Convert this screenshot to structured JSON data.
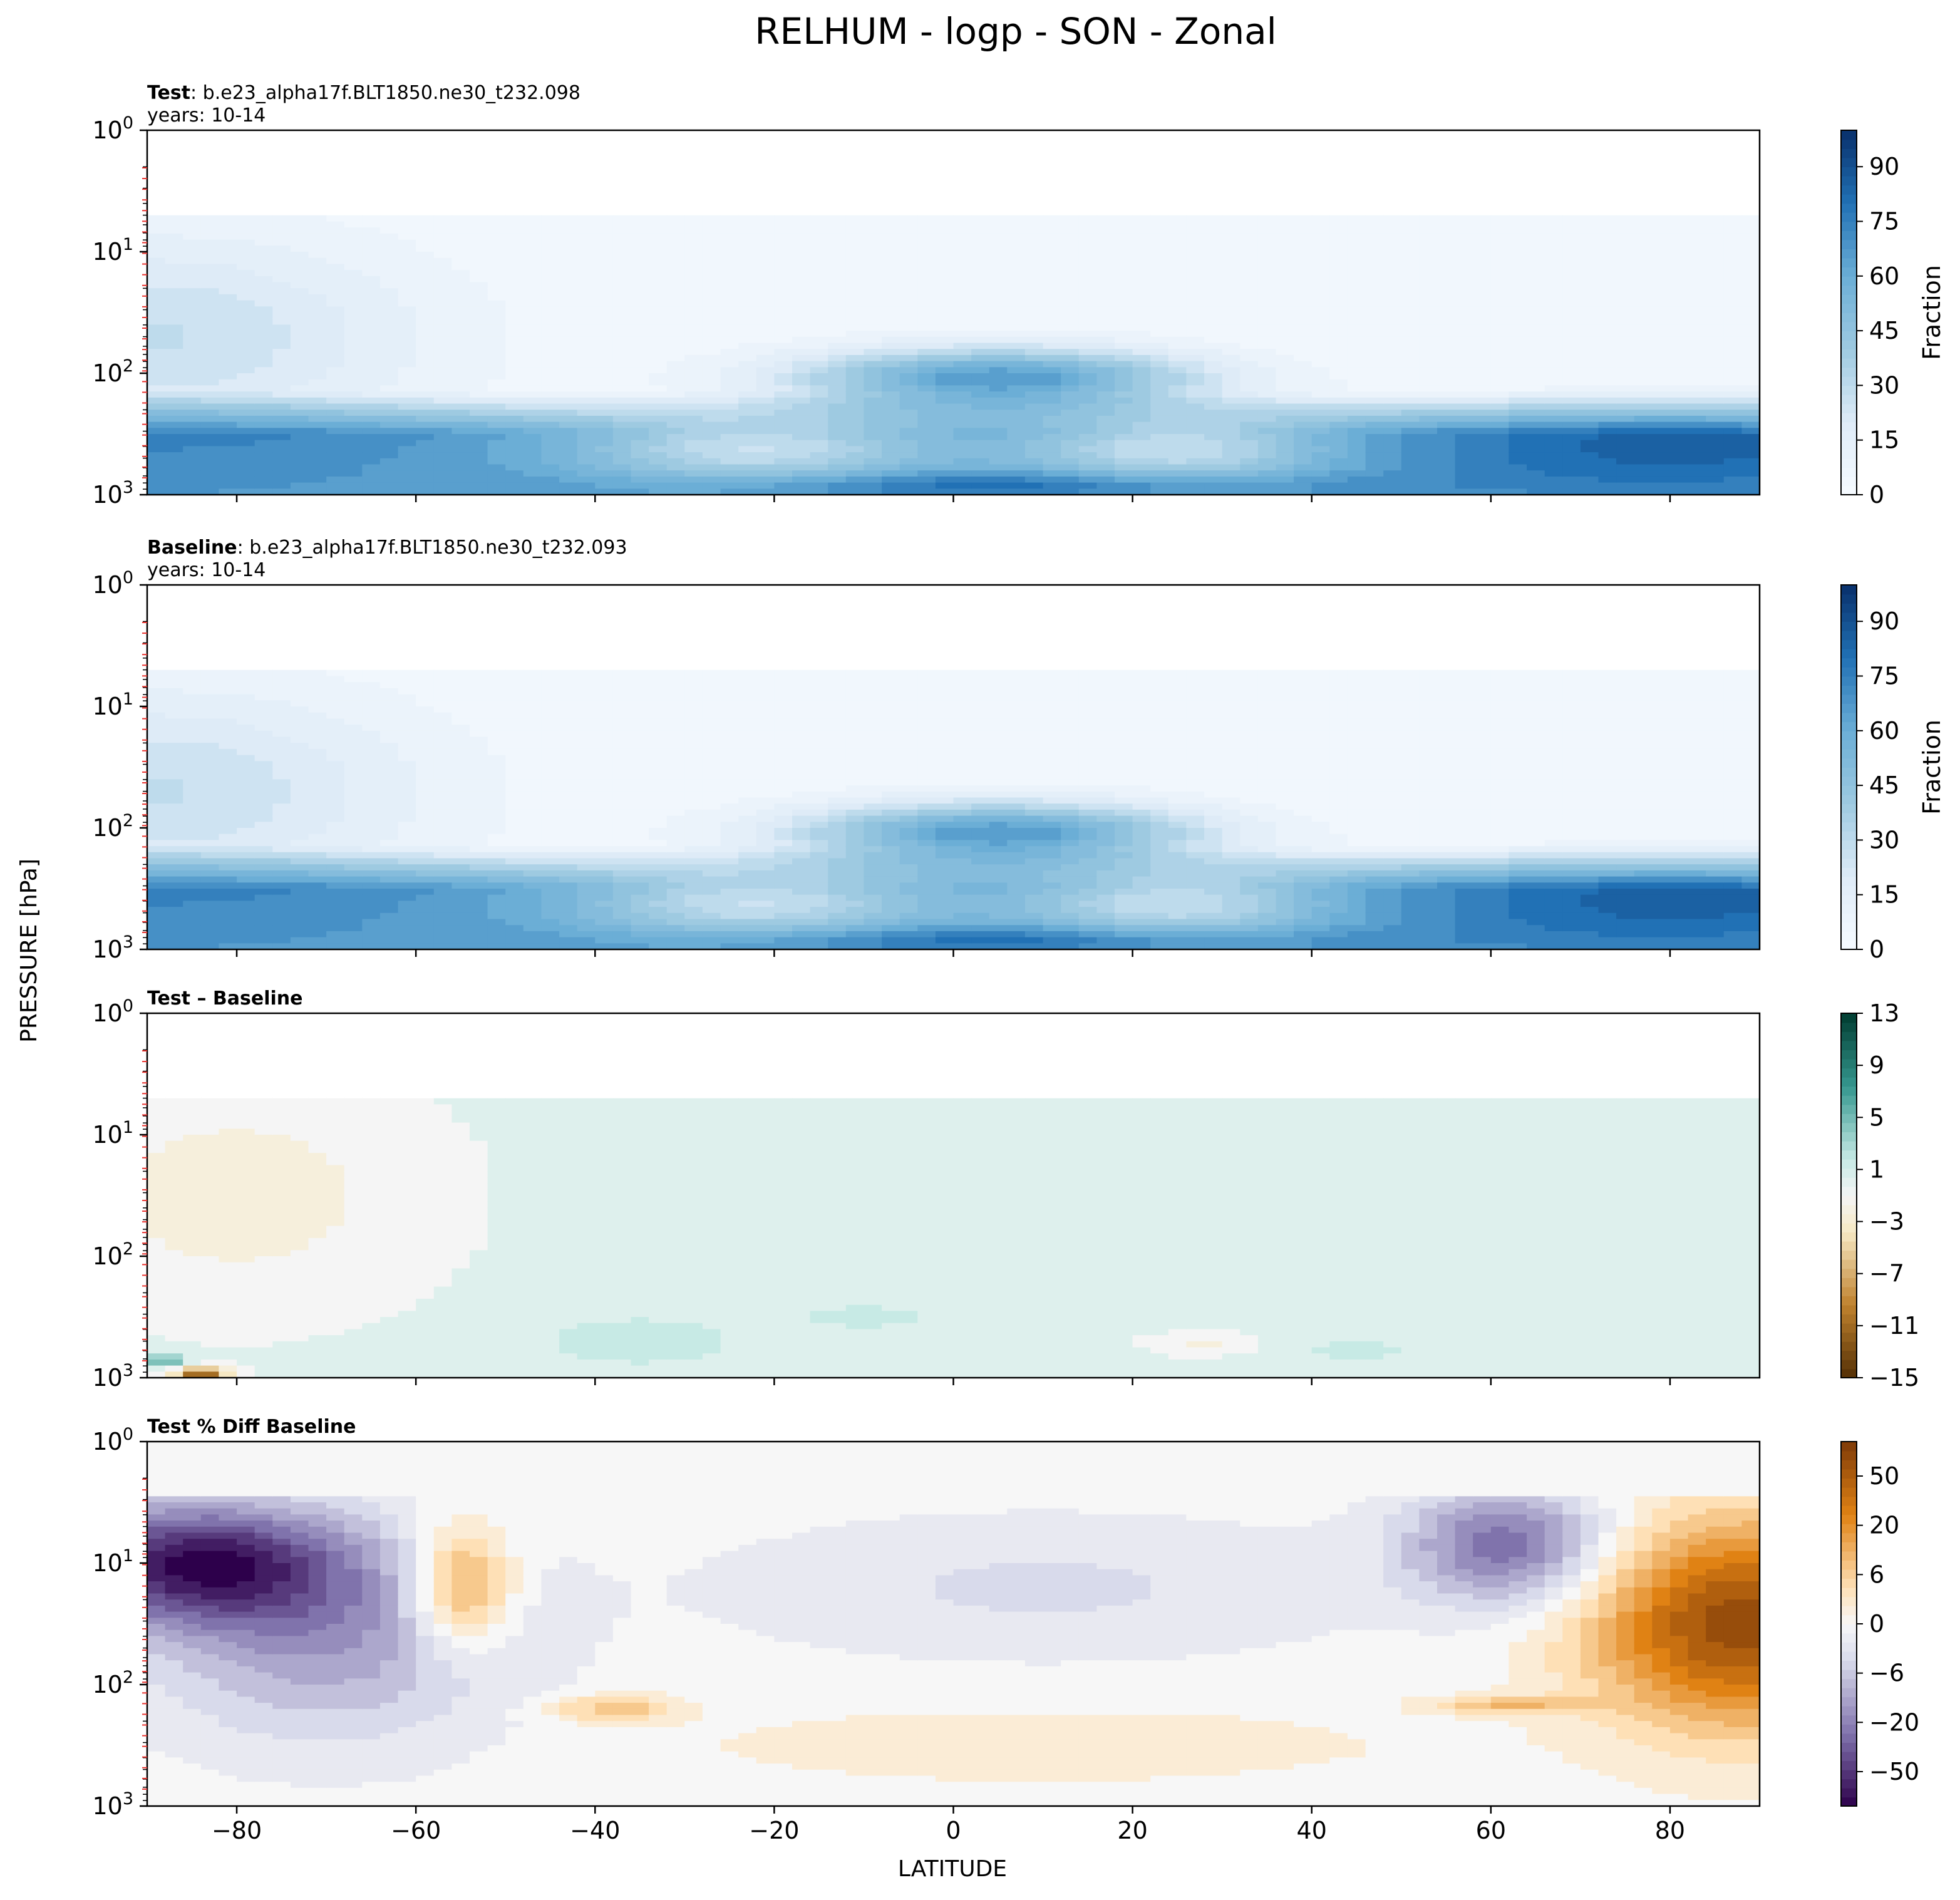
{
  "figure": {
    "title": "RELHUM - logp - SON - Zonal",
    "xlabel": "LATITUDE",
    "ylabel": "PRESSURE [hPa]"
  },
  "chart_data": [
    {
      "type": "heatmap",
      "panel": "test",
      "title_bold": "Test",
      "title_rest": ": b.e23_alpha17f.BLT1850.ne30_t232.098",
      "subtitle": "years: 10-14",
      "xlim": [
        -90,
        90
      ],
      "ylim_hpa": [
        1000,
        1
      ],
      "y_scale": "log",
      "x_ticks": [
        -80,
        -60,
        -40,
        -20,
        0,
        20,
        40,
        60,
        80
      ],
      "y_ticks": [
        {
          "base": "10",
          "exp": "0",
          "value": 1
        },
        {
          "base": "10",
          "exp": "1",
          "value": 10
        },
        {
          "base": "10",
          "exp": "2",
          "value": 100
        },
        {
          "base": "10",
          "exp": "3",
          "value": 1000
        }
      ],
      "colormap": "Blues",
      "colorbar_label": "Fraction",
      "colorbar_ticks": [
        "0",
        "15",
        "30",
        "45",
        "60",
        "75",
        "90"
      ],
      "colorbar_range": [
        0,
        100
      ],
      "data_top_hpa": 5,
      "features": [
        {
          "desc": "dry upper troposphere, moist boundary layer",
          "lat": [
            -90,
            90
          ]
        },
        {
          "desc": "tropical upper-tropospheric maximum near 100 hPa",
          "lat": [
            -20,
            20
          ],
          "value": 75
        },
        {
          "desc": "subtropical dry zones at 400-500 hPa",
          "lat": [
            -40,
            -10
          ],
          "value": 20
        },
        {
          "desc": "subtropical dry zones at 400-500 hPa",
          "lat": [
            15,
            35
          ],
          "value": 20
        },
        {
          "desc": "polar near-saturation at low levels",
          "lat": [
            60,
            90
          ],
          "value": 90
        }
      ]
    },
    {
      "type": "heatmap",
      "panel": "baseline",
      "title_bold": "Baseline",
      "title_rest": ": b.e23_alpha17f.BLT1850.ne30_t232.093",
      "subtitle": "years: 10-14",
      "xlim": [
        -90,
        90
      ],
      "ylim_hpa": [
        1000,
        1
      ],
      "y_scale": "log",
      "colormap": "Blues",
      "colorbar_label": "Fraction",
      "colorbar_ticks": [
        "0",
        "15",
        "30",
        "45",
        "60",
        "75",
        "90"
      ],
      "colorbar_range": [
        0,
        100
      ],
      "data_top_hpa": 5
    },
    {
      "type": "heatmap",
      "panel": "difference",
      "title_bold": "Test – Baseline",
      "colormap": "BrBG",
      "colorbar_ticks": [
        "13",
        "9",
        "5",
        "1",
        "−3",
        "−7",
        "−11",
        "−15"
      ],
      "colorbar_levels": [
        -15,
        -13,
        -11,
        -9,
        -7,
        -5,
        -3,
        -1,
        1,
        3,
        5,
        7,
        9,
        11,
        13
      ],
      "data_top_hpa": 5,
      "features": [
        {
          "desc": "weak drying in SH high-latitude upper troposphere",
          "lat": [
            -90,
            -60
          ],
          "value": -2
        },
        {
          "desc": "small moistening patches in lower troposphere",
          "lat": [
            -45,
            -30
          ],
          "value": 2
        },
        {
          "desc": "strongest drying near surface at 85S",
          "lat": [
            -86,
            -82
          ],
          "value": -13
        }
      ]
    },
    {
      "type": "heatmap",
      "panel": "percent_difference",
      "title_bold": "Test % Diff Baseline",
      "colormap": "PuOr_r",
      "colorbar_ticks": [
        "50",
        "20",
        "6",
        "0",
        "−6",
        "−20",
        "−50"
      ],
      "colorbar_levels": [
        -100,
        -75,
        -50,
        -40,
        -30,
        -20,
        -15,
        -10,
        -8,
        -6,
        -4,
        -2,
        -1,
        0,
        1,
        2,
        4,
        6,
        8,
        10,
        15,
        20,
        30,
        40,
        50,
        75,
        100
      ],
      "features": [
        {
          "desc": "negative percent differences in SH stratosphere",
          "lat": [
            -90,
            -60
          ],
          "value": -20
        },
        {
          "desc": "positive anomaly near 55S upper levels",
          "lat": [
            -60,
            -45
          ],
          "value": 15
        },
        {
          "desc": "NH polar stratosphere strongly positive",
          "lat": [
            70,
            90
          ],
          "value": 30
        },
        {
          "desc": "negative anomaly 50-70N upper levels",
          "lat": [
            50,
            70
          ],
          "value": -20
        }
      ]
    }
  ]
}
